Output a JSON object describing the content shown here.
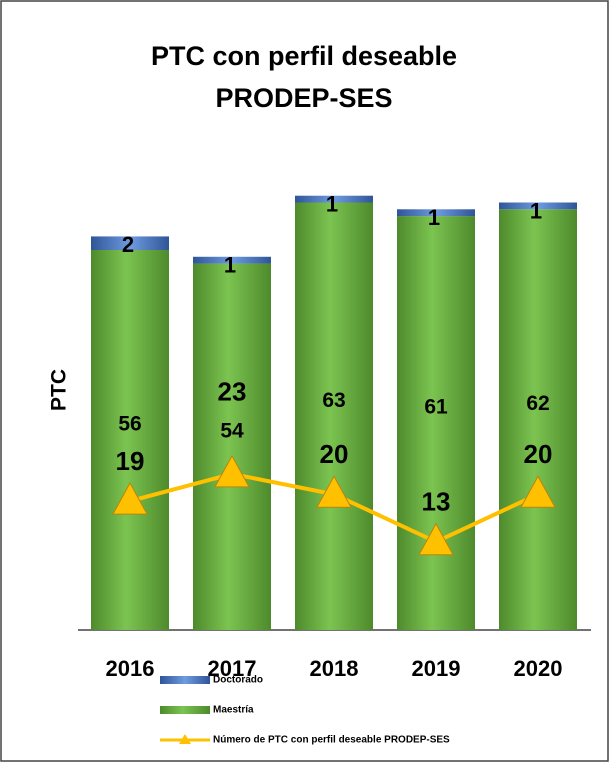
{
  "chart_data": {
    "type": "bar",
    "title_lines": [
      "PTC con perfil deseable",
      "PRODEP-SES"
    ],
    "y_label": "PTC",
    "categories": [
      "2016",
      "2017",
      "2018",
      "2019",
      "2020"
    ],
    "ylim": [
      0,
      70
    ],
    "series": [
      {
        "name": "Doctorado",
        "color": "#4472c4",
        "values": [
          2,
          1,
          1,
          1,
          1
        ],
        "stack": true
      },
      {
        "name": "Maestría",
        "color": "#70ad47",
        "values": [
          56,
          54,
          63,
          61,
          62
        ],
        "stack": true
      },
      {
        "name": "Número de PTC con perfil deseable PRODEP-SES",
        "type": "line",
        "color": "#ffc000",
        "values": [
          19,
          23,
          20,
          13,
          20
        ]
      }
    ]
  }
}
